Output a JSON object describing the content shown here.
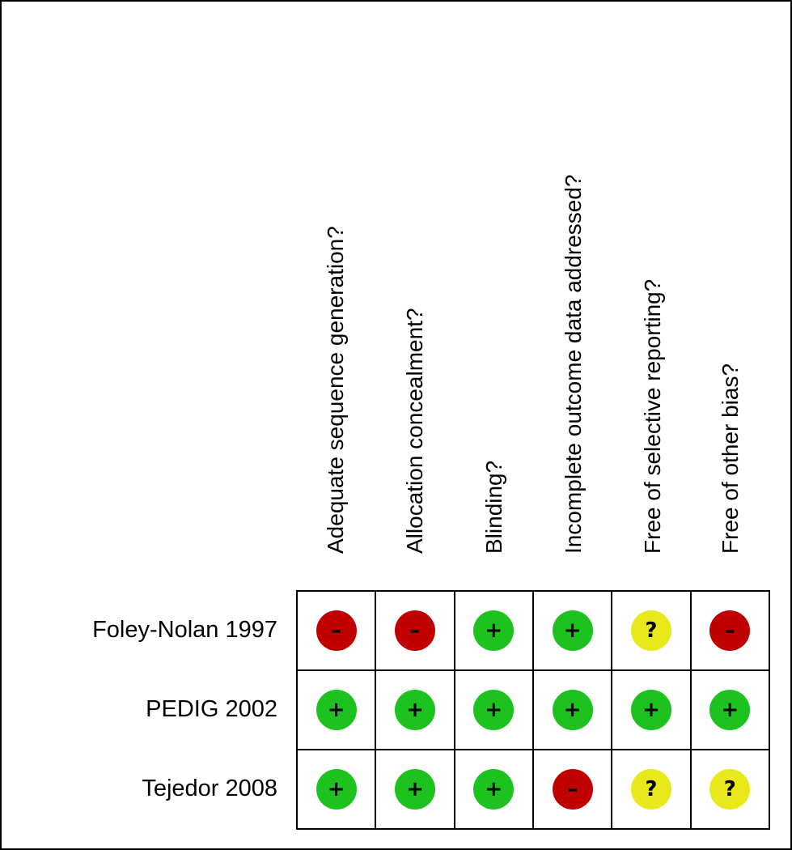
{
  "colors": {
    "low": "#1ec21e",
    "high": "#c00000",
    "unclear": "#e8e81a"
  },
  "symbols": {
    "low": "+",
    "high": "–",
    "unclear": "?"
  },
  "columns": [
    "Adequate sequence generation?",
    "Allocation concealment?",
    "Blinding?",
    "Incomplete outcome data addressed?",
    "Free of selective reporting?",
    "Free of other bias?"
  ],
  "rows": [
    {
      "study": "Foley-Nolan 1997",
      "judgements": [
        "high",
        "high",
        "low",
        "low",
        "unclear",
        "high"
      ]
    },
    {
      "study": "PEDIG 2002",
      "judgements": [
        "low",
        "low",
        "low",
        "low",
        "low",
        "low"
      ]
    },
    {
      "study": "Tejedor 2008",
      "judgements": [
        "low",
        "low",
        "low",
        "high",
        "unclear",
        "unclear"
      ]
    }
  ]
}
